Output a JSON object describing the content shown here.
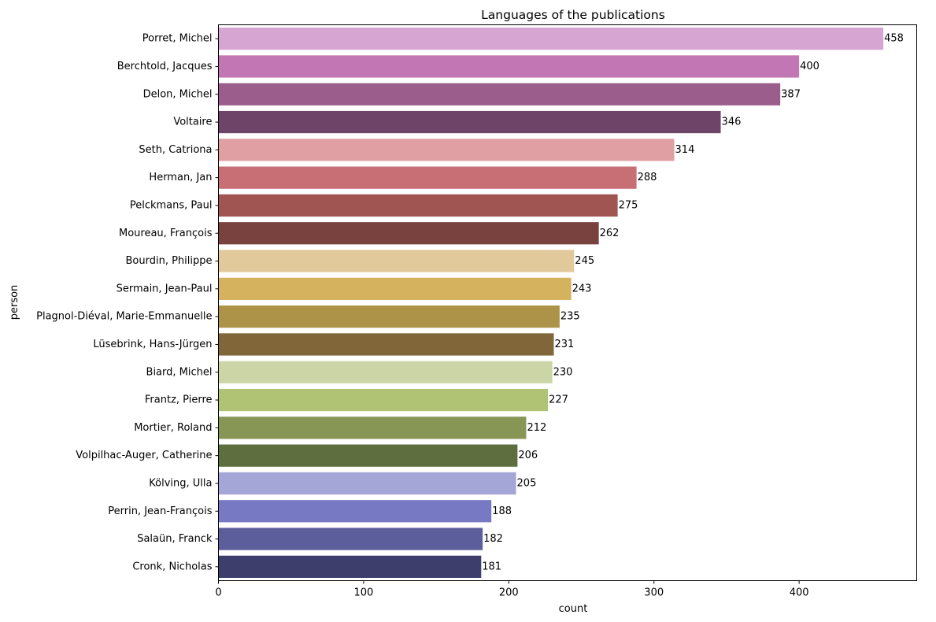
{
  "chart_data": {
    "type": "bar",
    "orientation": "horizontal",
    "title": "Languages of the publications",
    "xlabel": "count",
    "ylabel": "person",
    "xlim": [
      0,
      481
    ],
    "x_ticks": [
      0,
      100,
      200,
      300,
      400
    ],
    "grid": false,
    "legend": "none",
    "categories": [
      "Porret, Michel",
      "Berchtold, Jacques",
      "Delon, Michel",
      "Voltaire",
      "Seth, Catriona",
      "Herman, Jan",
      "Pelckmans, Paul",
      "Moureau, François",
      "Bourdin, Philippe",
      "Sermain, Jean-Paul",
      "Plagnol-Diéval, Marie-Emmanuelle",
      "Lüsebrink, Hans-Jürgen",
      "Biard, Michel",
      "Frantz, Pierre",
      "Mortier, Roland",
      "Volpilhac-Auger, Catherine",
      "Kölving, Ulla",
      "Perrin, Jean-François",
      "Salaün, Franck",
      "Cronk, Nicholas"
    ],
    "values": [
      458,
      400,
      387,
      346,
      314,
      288,
      275,
      262,
      245,
      243,
      235,
      231,
      230,
      227,
      212,
      206,
      205,
      188,
      182,
      181
    ],
    "value_labels": [
      "458",
      "400",
      "387",
      "346",
      "314",
      "288",
      "275",
      "262",
      "245",
      "243",
      "235",
      "231",
      "230",
      "227",
      "212",
      "206",
      "205",
      "188",
      "182",
      "181"
    ],
    "colors": [
      "#d6a5d2",
      "#c277b4",
      "#9a5d8c",
      "#6e4469",
      "#e0a0a3",
      "#c86e75",
      "#a15553",
      "#7a423e",
      "#e1c99b",
      "#d5b25e",
      "#ad9347",
      "#806638",
      "#ccd5a5",
      "#b0c273",
      "#879655",
      "#5f6e3e",
      "#a4a6d8",
      "#7879c3",
      "#5c5e9c",
      "#3e3e6d"
    ]
  }
}
